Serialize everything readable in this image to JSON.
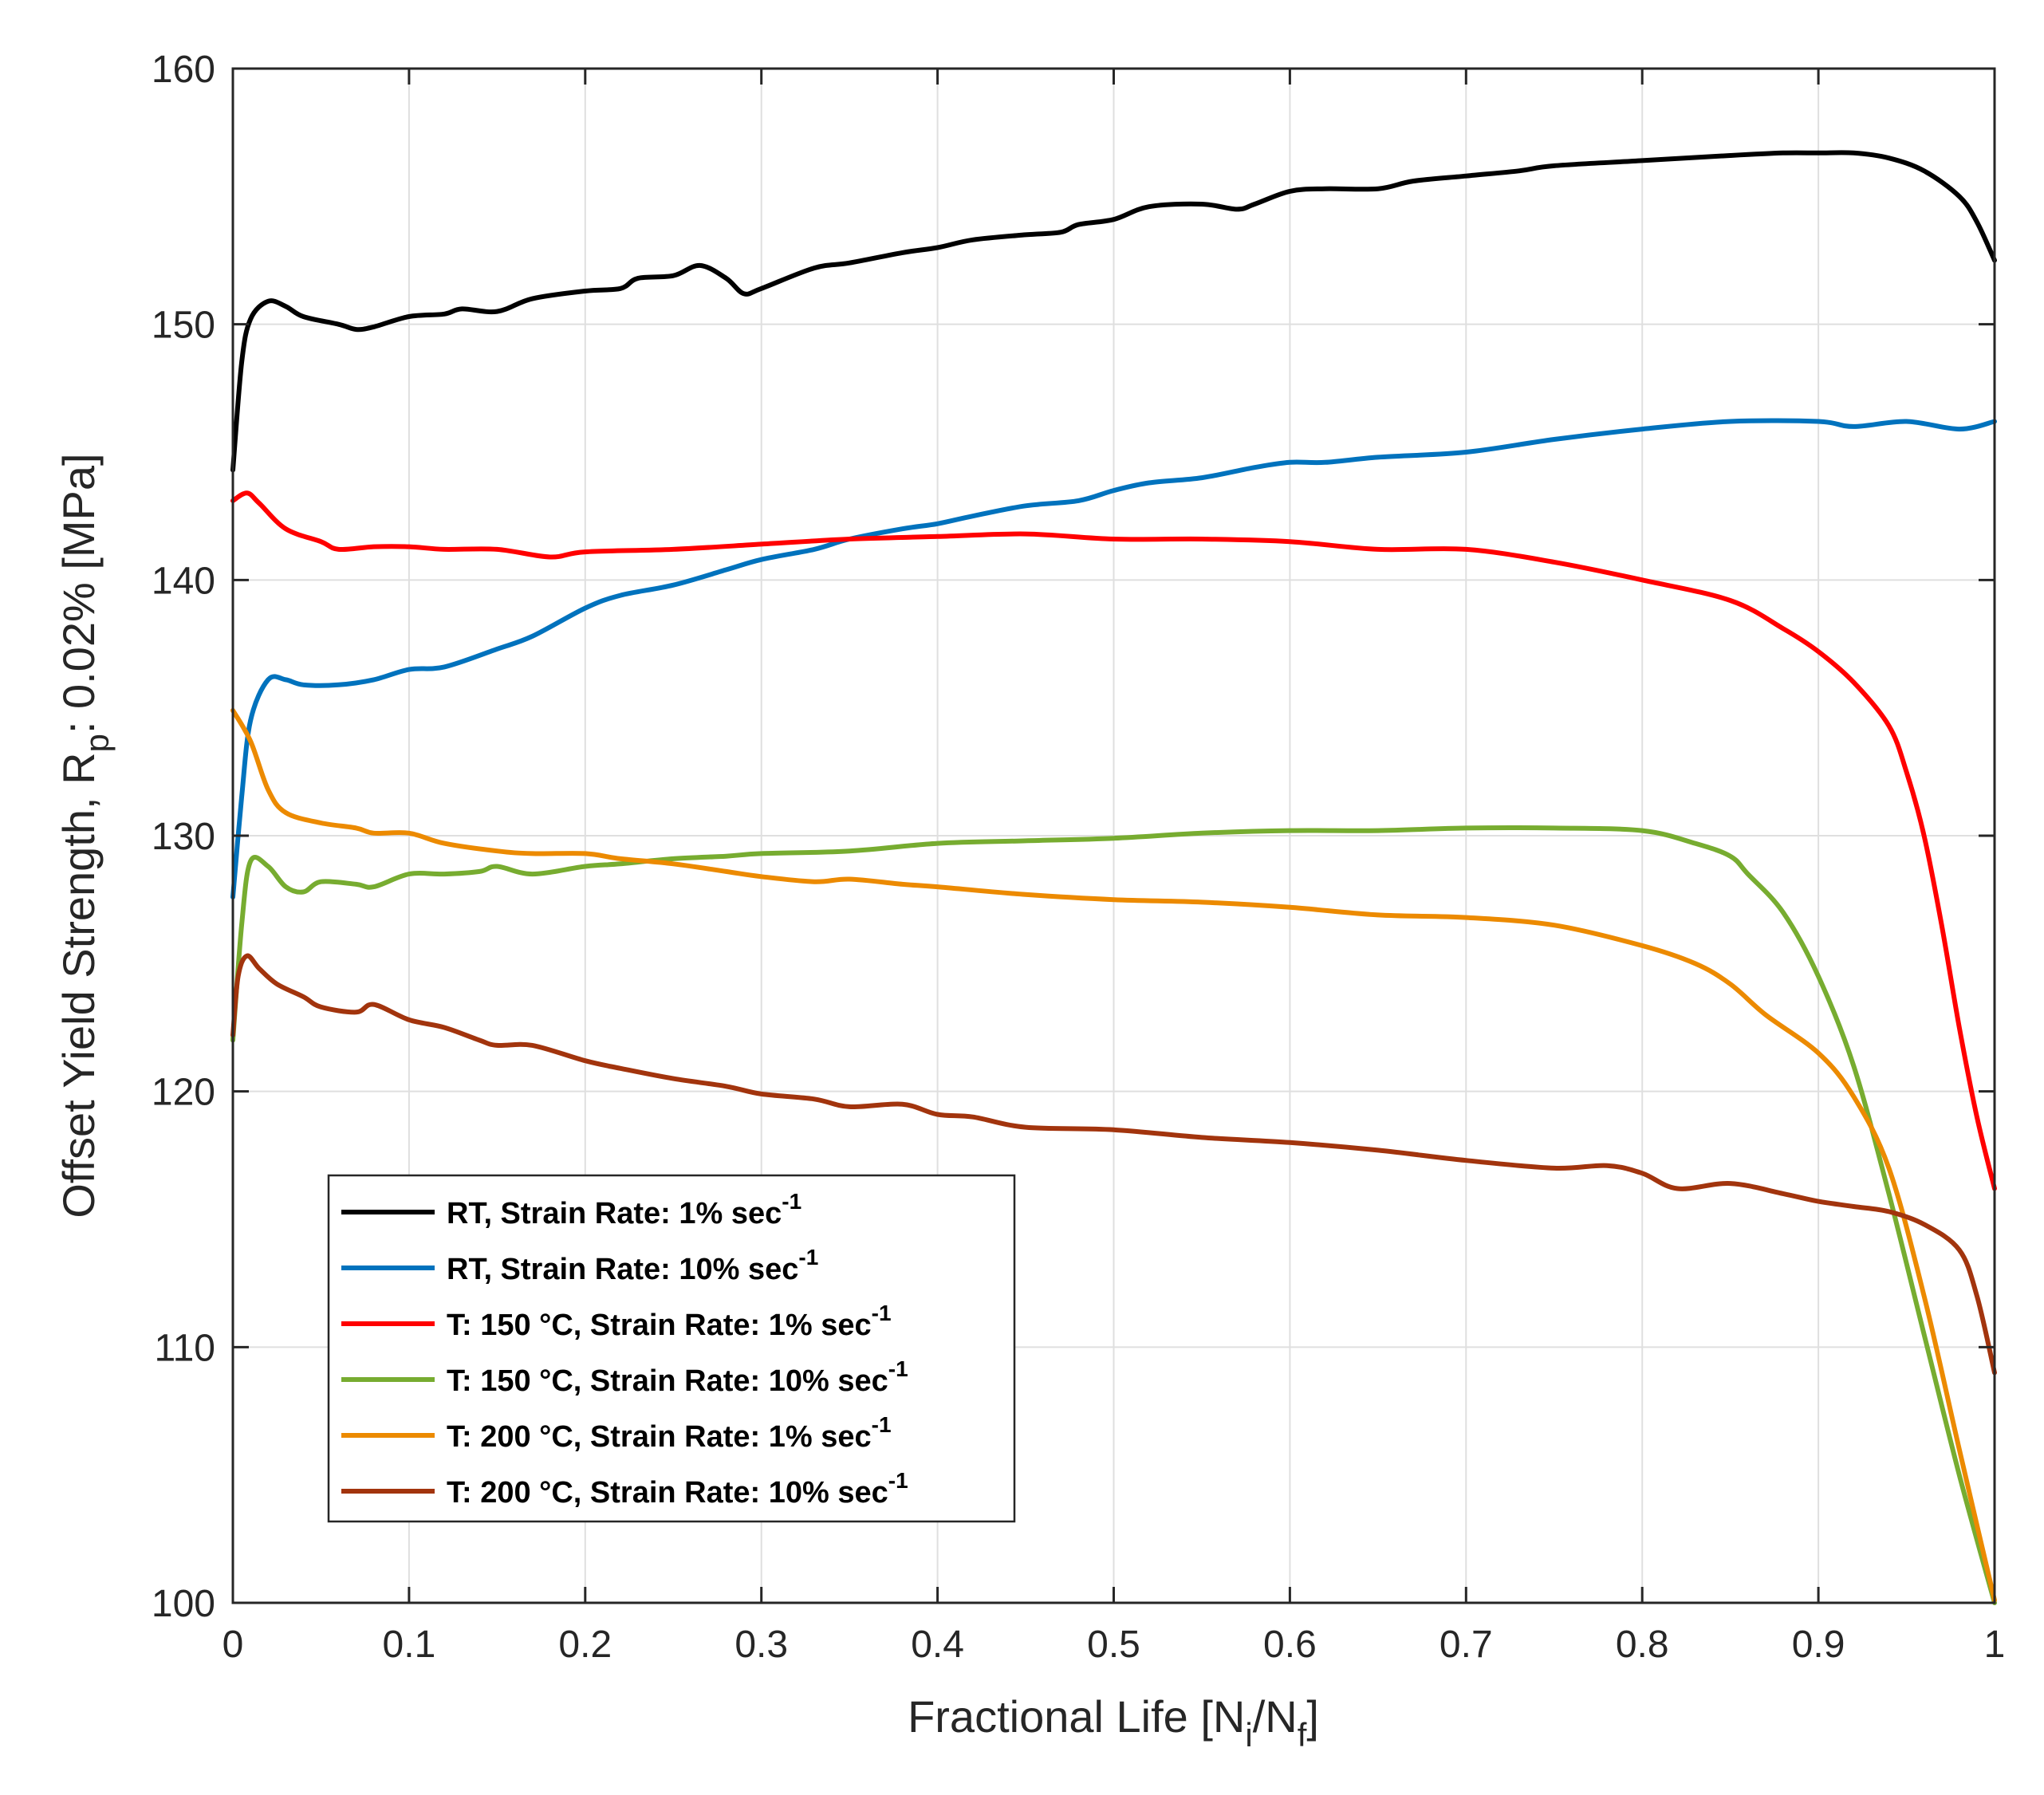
{
  "chart_data": {
    "type": "line",
    "title": "",
    "xlabel": {
      "main": "Fractional Life [N",
      "sub1": "i",
      "mid": "/N",
      "sub2": "f",
      "end": "]"
    },
    "ylabel": {
      "main": "Offset Yield Strength, R",
      "sub": "p",
      "end": ": 0.02% [MPa]"
    },
    "xlim": [
      0,
      1
    ],
    "ylim": [
      100,
      160
    ],
    "xticks": [
      "0",
      "0.1",
      "0.2",
      "0.3",
      "0.4",
      "0.5",
      "0.6",
      "0.7",
      "0.8",
      "0.9",
      "1"
    ],
    "yticks": [
      "100",
      "110",
      "120",
      "130",
      "140",
      "150",
      "160"
    ],
    "grid": true,
    "legend_position": "lower-left",
    "series": [
      {
        "name": "RT, Strain Rate: 1% sec",
        "superscript": "-1",
        "color": "#000000",
        "points": [
          [
            0,
            144.3
          ],
          [
            0.005,
            148.5
          ],
          [
            0.01,
            150.2
          ],
          [
            0.02,
            150.9
          ],
          [
            0.03,
            150.7
          ],
          [
            0.04,
            150.3
          ],
          [
            0.06,
            150.0
          ],
          [
            0.07,
            149.8
          ],
          [
            0.08,
            149.9
          ],
          [
            0.1,
            150.3
          ],
          [
            0.12,
            150.4
          ],
          [
            0.13,
            150.6
          ],
          [
            0.15,
            150.5
          ],
          [
            0.17,
            151.0
          ],
          [
            0.2,
            151.3
          ],
          [
            0.22,
            151.4
          ],
          [
            0.23,
            151.8
          ],
          [
            0.25,
            151.9
          ],
          [
            0.265,
            152.3
          ],
          [
            0.28,
            151.8
          ],
          [
            0.29,
            151.2
          ],
          [
            0.3,
            151.4
          ],
          [
            0.33,
            152.2
          ],
          [
            0.35,
            152.4
          ],
          [
            0.38,
            152.8
          ],
          [
            0.4,
            153.0
          ],
          [
            0.42,
            153.3
          ],
          [
            0.45,
            153.5
          ],
          [
            0.47,
            153.6
          ],
          [
            0.48,
            153.9
          ],
          [
            0.5,
            154.1
          ],
          [
            0.52,
            154.6
          ],
          [
            0.55,
            154.7
          ],
          [
            0.57,
            154.5
          ],
          [
            0.58,
            154.7
          ],
          [
            0.6,
            155.2
          ],
          [
            0.62,
            155.3
          ],
          [
            0.65,
            155.3
          ],
          [
            0.67,
            155.6
          ],
          [
            0.7,
            155.8
          ],
          [
            0.73,
            156.0
          ],
          [
            0.75,
            156.2
          ],
          [
            0.8,
            156.4
          ],
          [
            0.85,
            156.6
          ],
          [
            0.88,
            156.7
          ],
          [
            0.9,
            156.7
          ],
          [
            0.92,
            156.7
          ],
          [
            0.94,
            156.5
          ],
          [
            0.96,
            156.0
          ],
          [
            0.98,
            155.0
          ],
          [
            0.99,
            154.0
          ],
          [
            1.0,
            152.5
          ]
        ]
      },
      {
        "name": "RT, Strain Rate: 10% sec",
        "superscript": "-1",
        "color": "#0072BD",
        "points": [
          [
            0,
            127.6
          ],
          [
            0.005,
            131.5
          ],
          [
            0.01,
            134.5
          ],
          [
            0.02,
            136.1
          ],
          [
            0.03,
            136.1
          ],
          [
            0.04,
            135.9
          ],
          [
            0.06,
            135.9
          ],
          [
            0.08,
            136.1
          ],
          [
            0.1,
            136.5
          ],
          [
            0.12,
            136.6
          ],
          [
            0.15,
            137.3
          ],
          [
            0.17,
            137.8
          ],
          [
            0.2,
            138.9
          ],
          [
            0.22,
            139.4
          ],
          [
            0.25,
            139.8
          ],
          [
            0.28,
            140.4
          ],
          [
            0.3,
            140.8
          ],
          [
            0.33,
            141.2
          ],
          [
            0.35,
            141.6
          ],
          [
            0.38,
            142.0
          ],
          [
            0.4,
            142.2
          ],
          [
            0.42,
            142.5
          ],
          [
            0.45,
            142.9
          ],
          [
            0.48,
            143.1
          ],
          [
            0.5,
            143.5
          ],
          [
            0.52,
            143.8
          ],
          [
            0.55,
            144.0
          ],
          [
            0.58,
            144.4
          ],
          [
            0.6,
            144.6
          ],
          [
            0.62,
            144.6
          ],
          [
            0.65,
            144.8
          ],
          [
            0.7,
            145.0
          ],
          [
            0.75,
            145.5
          ],
          [
            0.8,
            145.9
          ],
          [
            0.85,
            146.2
          ],
          [
            0.9,
            146.2
          ],
          [
            0.92,
            146.0
          ],
          [
            0.95,
            146.2
          ],
          [
            0.98,
            145.9
          ],
          [
            1.0,
            146.2
          ]
        ]
      },
      {
        "name": "T: 150 °C, Strain Rate: 1% sec",
        "superscript": "-1",
        "color": "#FF0000",
        "points": [
          [
            0,
            143.1
          ],
          [
            0.008,
            143.4
          ],
          [
            0.015,
            143.0
          ],
          [
            0.03,
            142.0
          ],
          [
            0.05,
            141.5
          ],
          [
            0.06,
            141.2
          ],
          [
            0.08,
            141.3
          ],
          [
            0.1,
            141.3
          ],
          [
            0.12,
            141.2
          ],
          [
            0.15,
            141.2
          ],
          [
            0.18,
            140.9
          ],
          [
            0.2,
            141.1
          ],
          [
            0.25,
            141.2
          ],
          [
            0.3,
            141.4
          ],
          [
            0.35,
            141.6
          ],
          [
            0.4,
            141.7
          ],
          [
            0.45,
            141.8
          ],
          [
            0.5,
            141.6
          ],
          [
            0.55,
            141.6
          ],
          [
            0.6,
            141.5
          ],
          [
            0.65,
            141.2
          ],
          [
            0.7,
            141.2
          ],
          [
            0.75,
            140.7
          ],
          [
            0.8,
            140.0
          ],
          [
            0.85,
            139.2
          ],
          [
            0.88,
            138.1
          ],
          [
            0.9,
            137.2
          ],
          [
            0.92,
            136.0
          ],
          [
            0.94,
            134.3
          ],
          [
            0.95,
            132.5
          ],
          [
            0.96,
            130.0
          ],
          [
            0.97,
            126.5
          ],
          [
            0.98,
            122.5
          ],
          [
            0.99,
            119.0
          ],
          [
            1.0,
            116.2
          ]
        ]
      },
      {
        "name": "T: 150 °C, Strain Rate: 10% sec",
        "superscript": "-1",
        "color": "#77AC30",
        "points": [
          [
            0,
            122.0
          ],
          [
            0.005,
            126.5
          ],
          [
            0.01,
            129.0
          ],
          [
            0.02,
            128.8
          ],
          [
            0.03,
            128.0
          ],
          [
            0.04,
            127.8
          ],
          [
            0.05,
            128.2
          ],
          [
            0.07,
            128.1
          ],
          [
            0.08,
            128.0
          ],
          [
            0.1,
            128.5
          ],
          [
            0.12,
            128.5
          ],
          [
            0.14,
            128.6
          ],
          [
            0.15,
            128.8
          ],
          [
            0.17,
            128.5
          ],
          [
            0.2,
            128.8
          ],
          [
            0.22,
            128.9
          ],
          [
            0.25,
            129.1
          ],
          [
            0.28,
            129.2
          ],
          [
            0.3,
            129.3
          ],
          [
            0.35,
            129.4
          ],
          [
            0.4,
            129.7
          ],
          [
            0.45,
            129.8
          ],
          [
            0.5,
            129.9
          ],
          [
            0.55,
            130.1
          ],
          [
            0.6,
            130.2
          ],
          [
            0.65,
            130.2
          ],
          [
            0.7,
            130.3
          ],
          [
            0.75,
            130.3
          ],
          [
            0.8,
            130.2
          ],
          [
            0.83,
            129.7
          ],
          [
            0.85,
            129.2
          ],
          [
            0.86,
            128.5
          ],
          [
            0.88,
            127.0
          ],
          [
            0.9,
            124.5
          ],
          [
            0.92,
            121.0
          ],
          [
            0.94,
            116.0
          ],
          [
            0.96,
            110.5
          ],
          [
            0.98,
            105.0
          ],
          [
            1.0,
            100.0
          ]
        ]
      },
      {
        "name": "T: 200 °C, Strain Rate: 1% sec",
        "superscript": "-1",
        "color": "#EC8A00",
        "points": [
          [
            0,
            134.9
          ],
          [
            0.01,
            133.7
          ],
          [
            0.02,
            131.8
          ],
          [
            0.03,
            130.9
          ],
          [
            0.05,
            130.5
          ],
          [
            0.07,
            130.3
          ],
          [
            0.08,
            130.1
          ],
          [
            0.1,
            130.1
          ],
          [
            0.12,
            129.7
          ],
          [
            0.15,
            129.4
          ],
          [
            0.17,
            129.3
          ],
          [
            0.2,
            129.3
          ],
          [
            0.22,
            129.1
          ],
          [
            0.25,
            128.9
          ],
          [
            0.28,
            128.6
          ],
          [
            0.3,
            128.4
          ],
          [
            0.33,
            128.2
          ],
          [
            0.35,
            128.3
          ],
          [
            0.38,
            128.1
          ],
          [
            0.4,
            128.0
          ],
          [
            0.45,
            127.7
          ],
          [
            0.5,
            127.5
          ],
          [
            0.55,
            127.4
          ],
          [
            0.6,
            127.2
          ],
          [
            0.65,
            126.9
          ],
          [
            0.7,
            126.8
          ],
          [
            0.75,
            126.5
          ],
          [
            0.8,
            125.7
          ],
          [
            0.83,
            125.0
          ],
          [
            0.85,
            124.2
          ],
          [
            0.87,
            123.0
          ],
          [
            0.9,
            121.5
          ],
          [
            0.92,
            119.8
          ],
          [
            0.94,
            117.0
          ],
          [
            0.96,
            112.0
          ],
          [
            0.98,
            106.0
          ],
          [
            1.0,
            100.1
          ]
        ]
      },
      {
        "name": "T: 200 °C, Strain Rate: 10% sec",
        "superscript": "-1",
        "color": "#A2340D",
        "points": [
          [
            0,
            122.2
          ],
          [
            0.003,
            124.5
          ],
          [
            0.008,
            125.3
          ],
          [
            0.015,
            124.8
          ],
          [
            0.025,
            124.2
          ],
          [
            0.04,
            123.7
          ],
          [
            0.05,
            123.3
          ],
          [
            0.07,
            123.1
          ],
          [
            0.08,
            123.4
          ],
          [
            0.1,
            122.8
          ],
          [
            0.12,
            122.5
          ],
          [
            0.14,
            122.0
          ],
          [
            0.15,
            121.8
          ],
          [
            0.17,
            121.8
          ],
          [
            0.2,
            121.2
          ],
          [
            0.22,
            120.9
          ],
          [
            0.25,
            120.5
          ],
          [
            0.28,
            120.2
          ],
          [
            0.3,
            119.9
          ],
          [
            0.33,
            119.7
          ],
          [
            0.35,
            119.4
          ],
          [
            0.38,
            119.5
          ],
          [
            0.4,
            119.1
          ],
          [
            0.42,
            119.0
          ],
          [
            0.45,
            118.6
          ],
          [
            0.5,
            118.5
          ],
          [
            0.55,
            118.2
          ],
          [
            0.6,
            118.0
          ],
          [
            0.65,
            117.7
          ],
          [
            0.7,
            117.3
          ],
          [
            0.75,
            117.0
          ],
          [
            0.78,
            117.1
          ],
          [
            0.8,
            116.8
          ],
          [
            0.82,
            116.2
          ],
          [
            0.85,
            116.4
          ],
          [
            0.88,
            116.0
          ],
          [
            0.9,
            115.7
          ],
          [
            0.92,
            115.5
          ],
          [
            0.94,
            115.3
          ],
          [
            0.96,
            114.8
          ],
          [
            0.98,
            113.8
          ],
          [
            0.99,
            112.0
          ],
          [
            1.0,
            109.0
          ]
        ]
      }
    ]
  }
}
